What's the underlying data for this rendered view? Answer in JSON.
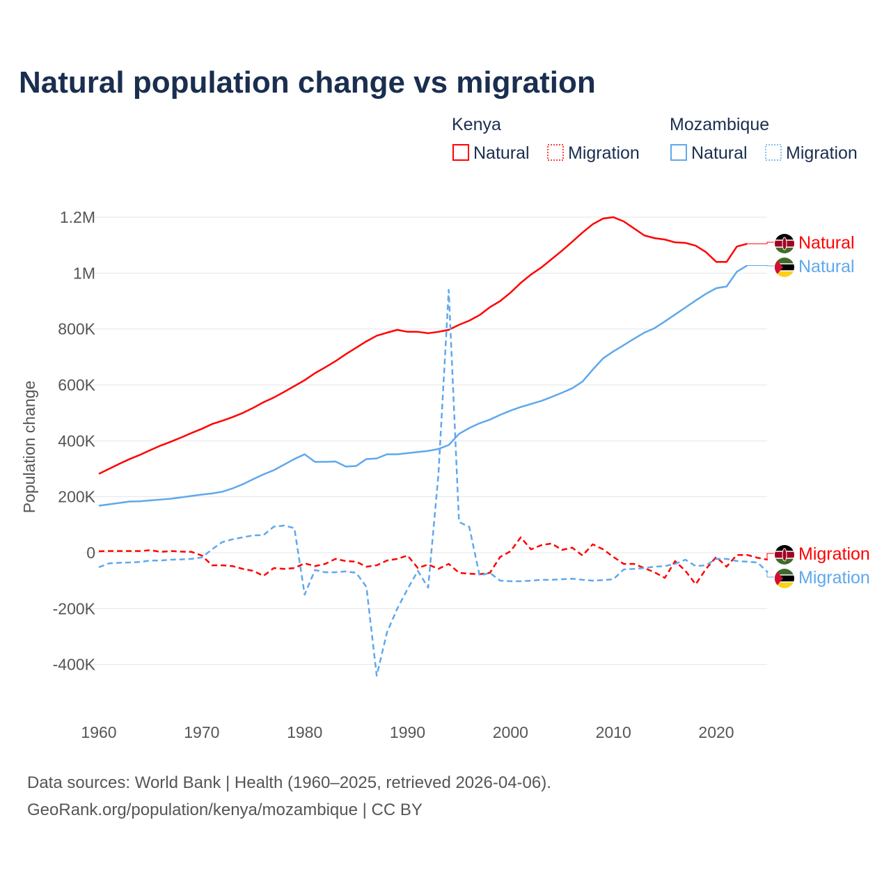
{
  "chart_data": {
    "type": "line",
    "title": "Natural population change vs migration",
    "ylabel": "Population change",
    "xlabel": "",
    "xlim": [
      1960,
      2025
    ],
    "ylim": [
      -400000,
      1200000
    ],
    "x_ticks": [
      "1960",
      "1970",
      "1980",
      "1990",
      "2000",
      "2010",
      "2020"
    ],
    "y_ticks": [
      {
        "value": 1200000,
        "label": "1.2M"
      },
      {
        "value": 1000000,
        "label": "1M"
      },
      {
        "value": 800000,
        "label": "800K"
      },
      {
        "value": 600000,
        "label": "600K"
      },
      {
        "value": 400000,
        "label": "400K"
      },
      {
        "value": 200000,
        "label": "200K"
      },
      {
        "value": 0,
        "label": "0"
      },
      {
        "value": -200000,
        "label": "-200K"
      },
      {
        "value": -400000,
        "label": "-400K"
      }
    ],
    "grid": true,
    "legend": {
      "placement": "top-right",
      "groups": [
        {
          "country": "Kenya",
          "items": [
            "Natural",
            "Migration"
          ]
        },
        {
          "country": "Mozambique",
          "items": [
            "Natural",
            "Migration"
          ]
        }
      ]
    },
    "x_start": 1960,
    "series": [
      {
        "name": "Kenya Natural",
        "country": "Kenya",
        "kind": "Natural",
        "label": "Natural",
        "color": "#ff0000",
        "dash": false,
        "values_k": [
          282,
          300,
          318,
          335,
          350,
          367,
          383,
          397,
          412,
          428,
          443,
          460,
          472,
          485,
          500,
          518,
          538,
          555,
          575,
          596,
          617,
          642,
          663,
          685,
          710,
          733,
          756,
          776,
          787,
          797,
          790,
          790,
          785,
          790,
          797,
          815,
          830,
          850,
          878,
          900,
          930,
          965,
          995,
          1020,
          1050,
          1080,
          1112,
          1145,
          1175,
          1195,
          1200,
          1185,
          1160,
          1135,
          1125,
          1120,
          1110,
          1108,
          1098,
          1075,
          1040,
          1040,
          1095,
          1105
        ]
      },
      {
        "name": "Mozambique Natural",
        "country": "Mozambique",
        "kind": "Natural",
        "label": "Natural",
        "color": "#5fa8ec",
        "dash": false,
        "values_k": [
          168,
          173,
          178,
          183,
          184,
          187,
          190,
          193,
          198,
          203,
          208,
          212,
          218,
          230,
          245,
          263,
          280,
          295,
          315,
          335,
          352,
          325,
          325,
          326,
          308,
          310,
          335,
          337,
          352,
          352,
          356,
          360,
          364,
          371,
          385,
          425,
          446,
          463,
          476,
          493,
          508,
          521,
          532,
          543,
          557,
          572,
          588,
          612,
          655,
          695,
          720,
          742,
          765,
          787,
          803,
          827,
          852,
          877,
          902,
          926,
          946,
          952,
          1005,
          1027
        ]
      },
      {
        "name": "Kenya Migration",
        "country": "Kenya",
        "kind": "Migration",
        "label": "Migration",
        "color": "#ff0000",
        "dash": true,
        "values_k": [
          5,
          6,
          6,
          6,
          6,
          9,
          3,
          6,
          4,
          3,
          -10,
          -45,
          -45,
          -48,
          -58,
          -65,
          -83,
          -55,
          -58,
          -55,
          -38,
          -48,
          -40,
          -22,
          -30,
          -32,
          -50,
          -45,
          -28,
          -22,
          -10,
          -55,
          -42,
          -58,
          -40,
          -72,
          -75,
          -77,
          -72,
          -15,
          5,
          55,
          12,
          27,
          33,
          10,
          18,
          -10,
          30,
          12,
          -15,
          -40,
          -40,
          -55,
          -70,
          -90,
          -30,
          -65,
          -113,
          -58,
          -15,
          -50,
          -8,
          -8,
          -18,
          -25
        ]
      },
      {
        "name": "Mozambique Migration",
        "country": "Mozambique",
        "kind": "Migration",
        "label": "Migration",
        "color": "#5fa8ec",
        "dash": true,
        "values_k": [
          -52,
          -38,
          -36,
          -35,
          -33,
          -28,
          -28,
          -25,
          -24,
          -22,
          -17,
          12,
          38,
          48,
          55,
          62,
          63,
          93,
          97,
          88,
          -150,
          -62,
          -70,
          -70,
          -67,
          -72,
          -122,
          -440,
          -285,
          -200,
          -130,
          -65,
          -125,
          280,
          940,
          110,
          92,
          -82,
          -72,
          -100,
          -102,
          -102,
          -100,
          -97,
          -97,
          -95,
          -93,
          -97,
          -100,
          -98,
          -95,
          -60,
          -58,
          -55,
          -50,
          -48,
          -40,
          -25,
          -48,
          -45,
          -22,
          -22,
          -30,
          -32,
          -35,
          -70
        ]
      }
    ],
    "value_unit_note": "values_k in thousands"
  },
  "footer": {
    "line1": "Data sources: World Bank | Health (1960–2025, retrieved 2026-04-06).",
    "line2": "GeoRank.org/population/kenya/mozambique | CC BY"
  },
  "colors": {
    "kenya": "#ff0000",
    "mozambique": "#5fa8ec",
    "title": "#1a2e4f"
  }
}
